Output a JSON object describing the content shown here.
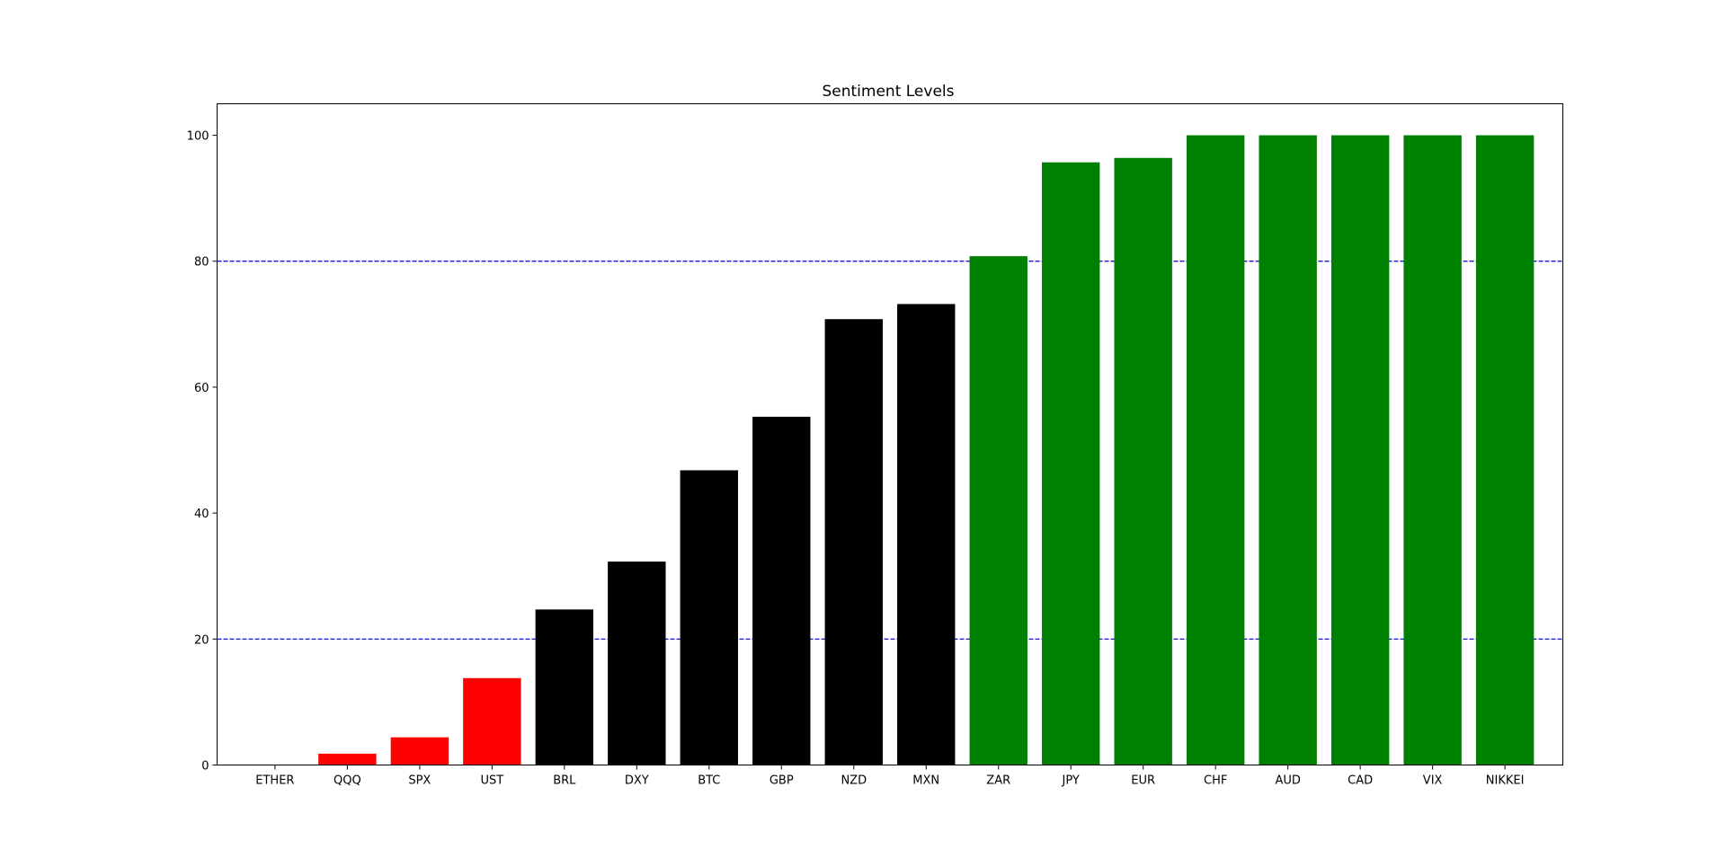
{
  "chart_data": {
    "type": "bar",
    "title": "Sentiment Levels",
    "xlabel": "",
    "ylabel": "",
    "categories": [
      "ETHER",
      "QQQ",
      "SPX",
      "UST",
      "BRL",
      "DXY",
      "BTC",
      "GBP",
      "NZD",
      "MXN",
      "ZAR",
      "JPY",
      "EUR",
      "CHF",
      "AUD",
      "CAD",
      "VIX",
      "NIKKEI"
    ],
    "values": [
      0,
      1.8,
      4.4,
      13.8,
      24.7,
      32.3,
      46.8,
      55.3,
      70.8,
      73.2,
      80.8,
      95.7,
      96.4,
      100,
      100,
      100,
      100,
      100
    ],
    "bar_colors": [
      "#ff0000",
      "#ff0000",
      "#ff0000",
      "#ff0000",
      "#000000",
      "#000000",
      "#000000",
      "#000000",
      "#000000",
      "#000000",
      "#008000",
      "#008000",
      "#008000",
      "#008000",
      "#008000",
      "#008000",
      "#008000",
      "#008000"
    ],
    "ylim": [
      0,
      105
    ],
    "yticks": [
      0,
      20,
      40,
      60,
      80,
      100
    ],
    "reference_lines": [
      {
        "y": 20,
        "color": "#0000cc",
        "style": "dashed"
      },
      {
        "y": 80,
        "color": "#0000cc",
        "style": "dashed"
      }
    ],
    "grid": false,
    "legend": "none"
  }
}
